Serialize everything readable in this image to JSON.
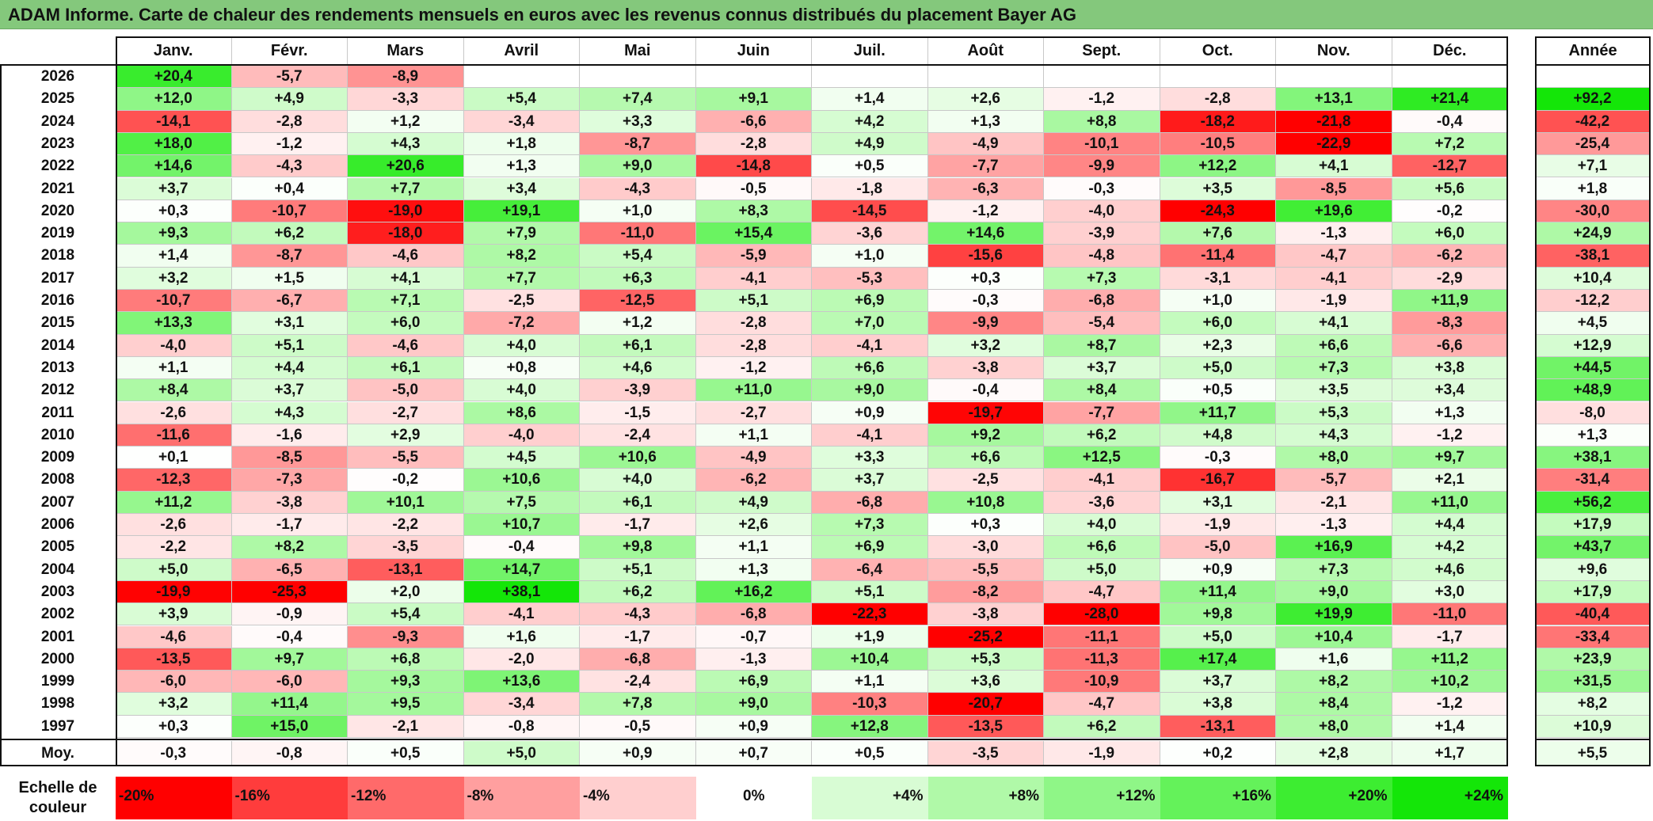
{
  "title": "ADAM Informe. Carte de chaleur des rendements mensuels en euros avec les revenus connus distribués du placement Bayer AG",
  "chart_data": {
    "type": "heatmap",
    "columns": [
      "Janv.",
      "Févr.",
      "Mars",
      "Avril",
      "Mai",
      "Juin",
      "Juil.",
      "Août",
      "Sept.",
      "Oct.",
      "Nov.",
      "Déc."
    ],
    "year_column": "Année",
    "average_label": "Moy.",
    "rows": [
      {
        "year": "2026",
        "values": [
          "+20,4",
          "-5,7",
          "-8,9",
          "",
          "",
          "",
          "",
          "",
          "",
          "",
          "",
          ""
        ],
        "annual": ""
      },
      {
        "year": "2025",
        "values": [
          "+12,0",
          "+4,9",
          "-3,3",
          "+5,4",
          "+7,4",
          "+9,1",
          "+1,4",
          "+2,6",
          "-1,2",
          "-2,8",
          "+13,1",
          "+21,4"
        ],
        "annual": "+92,2"
      },
      {
        "year": "2024",
        "values": [
          "-14,1",
          "-2,8",
          "+1,2",
          "-3,4",
          "+3,3",
          "-6,6",
          "+4,2",
          "+1,3",
          "+8,8",
          "-18,2",
          "-21,8",
          "-0,4"
        ],
        "annual": "-42,2"
      },
      {
        "year": "2023",
        "values": [
          "+18,0",
          "-1,2",
          "+4,3",
          "+1,8",
          "-8,7",
          "-2,8",
          "+4,9",
          "-4,9",
          "-10,1",
          "-10,5",
          "-22,9",
          "+7,2"
        ],
        "annual": "-25,4"
      },
      {
        "year": "2022",
        "values": [
          "+14,6",
          "-4,3",
          "+20,6",
          "+1,3",
          "+9,0",
          "-14,8",
          "+0,5",
          "-7,7",
          "-9,9",
          "+12,2",
          "+4,1",
          "-12,7"
        ],
        "annual": "+7,1"
      },
      {
        "year": "2021",
        "values": [
          "+3,7",
          "+0,4",
          "+7,7",
          "+3,4",
          "-4,3",
          "-0,5",
          "-1,8",
          "-6,3",
          "-0,3",
          "+3,5",
          "-8,5",
          "+5,6"
        ],
        "annual": "+1,8"
      },
      {
        "year": "2020",
        "values": [
          "+0,3",
          "-10,7",
          "-19,0",
          "+19,1",
          "+1,0",
          "+8,3",
          "-14,5",
          "-1,2",
          "-4,0",
          "-24,3",
          "+19,6",
          "-0,2"
        ],
        "annual": "-30,0"
      },
      {
        "year": "2019",
        "values": [
          "+9,3",
          "+6,2",
          "-18,0",
          "+7,9",
          "-11,0",
          "+15,4",
          "-3,6",
          "+14,6",
          "-3,9",
          "+7,6",
          "-1,3",
          "+6,0"
        ],
        "annual": "+24,9"
      },
      {
        "year": "2018",
        "values": [
          "+1,4",
          "-8,7",
          "-4,6",
          "+8,2",
          "+5,4",
          "-5,9",
          "+1,0",
          "-15,6",
          "-4,8",
          "-11,4",
          "-4,7",
          "-6,2"
        ],
        "annual": "-38,1"
      },
      {
        "year": "2017",
        "values": [
          "+3,2",
          "+1,5",
          "+4,1",
          "+7,7",
          "+6,3",
          "-4,1",
          "-5,3",
          "+0,3",
          "+7,3",
          "-3,1",
          "-4,1",
          "-2,9"
        ],
        "annual": "+10,4"
      },
      {
        "year": "2016",
        "values": [
          "-10,7",
          "-6,7",
          "+7,1",
          "-2,5",
          "-12,5",
          "+5,1",
          "+6,9",
          "-0,3",
          "-6,8",
          "+1,0",
          "-1,9",
          "+11,9"
        ],
        "annual": "-12,2"
      },
      {
        "year": "2015",
        "values": [
          "+13,3",
          "+3,1",
          "+6,0",
          "-7,2",
          "+1,2",
          "-2,8",
          "+7,0",
          "-9,9",
          "-5,4",
          "+6,0",
          "+4,1",
          "-8,3"
        ],
        "annual": "+4,5"
      },
      {
        "year": "2014",
        "values": [
          "-4,0",
          "+5,1",
          "-4,6",
          "+4,0",
          "+6,1",
          "-2,8",
          "-4,1",
          "+3,2",
          "+8,7",
          "+2,3",
          "+6,6",
          "-6,6"
        ],
        "annual": "+12,9"
      },
      {
        "year": "2013",
        "values": [
          "+1,1",
          "+4,4",
          "+6,1",
          "+0,8",
          "+4,6",
          "-1,2",
          "+6,6",
          "-3,8",
          "+3,7",
          "+5,0",
          "+7,3",
          "+3,8"
        ],
        "annual": "+44,5"
      },
      {
        "year": "2012",
        "values": [
          "+8,4",
          "+3,7",
          "-5,0",
          "+4,0",
          "-3,9",
          "+11,0",
          "+9,0",
          "-0,4",
          "+8,4",
          "+0,5",
          "+3,5",
          "+3,4"
        ],
        "annual": "+48,9"
      },
      {
        "year": "2011",
        "values": [
          "-2,6",
          "+4,3",
          "-2,7",
          "+8,6",
          "-1,5",
          "-2,7",
          "+0,9",
          "-19,7",
          "-7,7",
          "+11,7",
          "+5,3",
          "+1,3"
        ],
        "annual": "-8,0"
      },
      {
        "year": "2010",
        "values": [
          "-11,6",
          "-1,6",
          "+2,9",
          "-4,0",
          "-2,4",
          "+1,1",
          "-4,1",
          "+9,2",
          "+6,2",
          "+4,8",
          "+4,3",
          "-1,2"
        ],
        "annual": "+1,3"
      },
      {
        "year": "2009",
        "values": [
          "+0,1",
          "-8,5",
          "-5,5",
          "+4,5",
          "+10,6",
          "-4,9",
          "+3,3",
          "+6,6",
          "+12,5",
          "-0,3",
          "+8,0",
          "+9,7"
        ],
        "annual": "+38,1"
      },
      {
        "year": "2008",
        "values": [
          "-12,3",
          "-7,3",
          "-0,2",
          "+10,6",
          "+4,0",
          "-6,2",
          "+3,7",
          "-2,5",
          "-4,1",
          "-16,7",
          "-5,7",
          "+2,1"
        ],
        "annual": "-31,4"
      },
      {
        "year": "2007",
        "values": [
          "+11,2",
          "-3,8",
          "+10,1",
          "+7,5",
          "+6,1",
          "+4,9",
          "-6,8",
          "+10,8",
          "-3,6",
          "+3,1",
          "-2,1",
          "+11,0"
        ],
        "annual": "+56,2"
      },
      {
        "year": "2006",
        "values": [
          "-2,6",
          "-1,7",
          "-2,2",
          "+10,7",
          "-1,7",
          "+2,6",
          "+7,3",
          "+0,3",
          "+4,0",
          "-1,9",
          "-1,3",
          "+4,4"
        ],
        "annual": "+17,9"
      },
      {
        "year": "2005",
        "values": [
          "-2,2",
          "+8,2",
          "-3,5",
          "-0,4",
          "+9,8",
          "+1,1",
          "+6,9",
          "-3,0",
          "+6,6",
          "-5,0",
          "+16,9",
          "+4,2"
        ],
        "annual": "+43,7"
      },
      {
        "year": "2004",
        "values": [
          "+5,0",
          "-6,5",
          "-13,1",
          "+14,7",
          "+5,1",
          "+1,3",
          "-6,4",
          "-5,5",
          "+5,0",
          "+0,9",
          "+7,3",
          "+4,6"
        ],
        "annual": "+9,6"
      },
      {
        "year": "2003",
        "values": [
          "-19,9",
          "-25,3",
          "+2,0",
          "+38,1",
          "+6,2",
          "+16,2",
          "+5,1",
          "-8,2",
          "-4,7",
          "+11,4",
          "+9,0",
          "+3,0"
        ],
        "annual": "+17,9"
      },
      {
        "year": "2002",
        "values": [
          "+3,9",
          "-0,9",
          "+5,4",
          "-4,1",
          "-4,3",
          "-6,8",
          "-22,3",
          "-3,8",
          "-28,0",
          "+9,8",
          "+19,9",
          "-11,0"
        ],
        "annual": "-40,4"
      },
      {
        "year": "2001",
        "values": [
          "-4,6",
          "-0,4",
          "-9,3",
          "+1,6",
          "-1,7",
          "-0,7",
          "+1,9",
          "-25,2",
          "-11,1",
          "+5,0",
          "+10,4",
          "-1,7"
        ],
        "annual": "-33,4"
      },
      {
        "year": "2000",
        "values": [
          "-13,5",
          "+9,7",
          "+6,8",
          "-2,0",
          "-6,8",
          "-1,3",
          "+10,4",
          "+5,3",
          "-11,3",
          "+17,4",
          "+1,6",
          "+11,2"
        ],
        "annual": "+23,9"
      },
      {
        "year": "1999",
        "values": [
          "-6,0",
          "-6,0",
          "+9,3",
          "+13,6",
          "-2,4",
          "+6,9",
          "+1,1",
          "+3,6",
          "-10,9",
          "+3,7",
          "+8,2",
          "+10,2"
        ],
        "annual": "+31,5"
      },
      {
        "year": "1998",
        "values": [
          "+3,2",
          "+11,4",
          "+9,5",
          "-3,4",
          "+7,8",
          "+9,0",
          "-10,3",
          "-20,7",
          "-4,7",
          "+3,8",
          "+8,4",
          "-1,2"
        ],
        "annual": "+8,2"
      },
      {
        "year": "1997",
        "values": [
          "+0,3",
          "+15,0",
          "-2,1",
          "-0,8",
          "-0,5",
          "+0,9",
          "+12,8",
          "-13,5",
          "+6,2",
          "-13,1",
          "+8,0",
          "+1,4"
        ],
        "annual": "+10,9"
      }
    ],
    "averages": {
      "values": [
        "-0,3",
        "-0,8",
        "+0,5",
        "+5,0",
        "+0,9",
        "+0,7",
        "+0,5",
        "-3,5",
        "-1,9",
        "+0,2",
        "+2,8",
        "+1,7"
      ],
      "annual": "+5,5"
    },
    "color_scale": {
      "label": "Echelle de couleur",
      "stops": [
        {
          "value": -20,
          "label": "-20%",
          "color": "#ff0000"
        },
        {
          "value": -16,
          "label": "-16%",
          "color": "#ff3c3c"
        },
        {
          "value": -12,
          "label": "-12%",
          "color": "#ff6a6a"
        },
        {
          "value": -8,
          "label": "-8%",
          "color": "#ff9f9f"
        },
        {
          "value": -4,
          "label": "-4%",
          "color": "#ffcfcf"
        },
        {
          "value": 0,
          "label": "0%",
          "color": "#ffffff"
        },
        {
          "value": 4,
          "label": "+4%",
          "color": "#d8fcd4"
        },
        {
          "value": 8,
          "label": "+8%",
          "color": "#b0f9a8"
        },
        {
          "value": 12,
          "label": "+12%",
          "color": "#8ff687"
        },
        {
          "value": 16,
          "label": "+16%",
          "color": "#64f25a"
        },
        {
          "value": 20,
          "label": "+20%",
          "color": "#3ded31"
        },
        {
          "value": 24,
          "label": "+24%",
          "color": "#14e608"
        }
      ]
    }
  }
}
